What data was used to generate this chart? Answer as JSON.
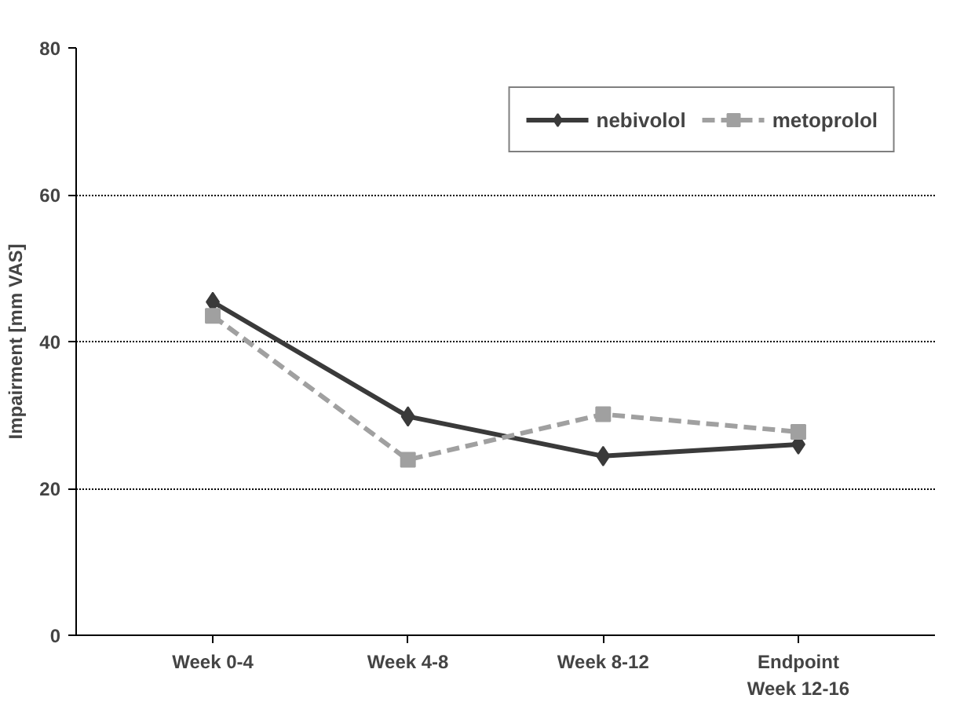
{
  "chart_data": {
    "type": "line",
    "ylabel": "Impairment [mm VAS]",
    "categories": [
      "Week 0-4",
      "Week 4-8",
      "Week 8-12",
      "Endpoint\nWeek 12-16"
    ],
    "series": [
      {
        "name": "nebivolol",
        "color": "#3a3a3a",
        "values": [
          45.4,
          29.8,
          24.4,
          26.0
        ],
        "marker": "diamond",
        "line_style": "solid"
      },
      {
        "name": "metoprolol",
        "color": "#a0a0a0",
        "values": [
          43.5,
          23.9,
          30.1,
          27.7
        ],
        "marker": "square",
        "line_style": "dashed"
      }
    ],
    "ylim": [
      0,
      80
    ],
    "yticks": [
      0,
      20,
      40,
      60,
      80
    ],
    "grid": "y",
    "legend": "top right"
  }
}
